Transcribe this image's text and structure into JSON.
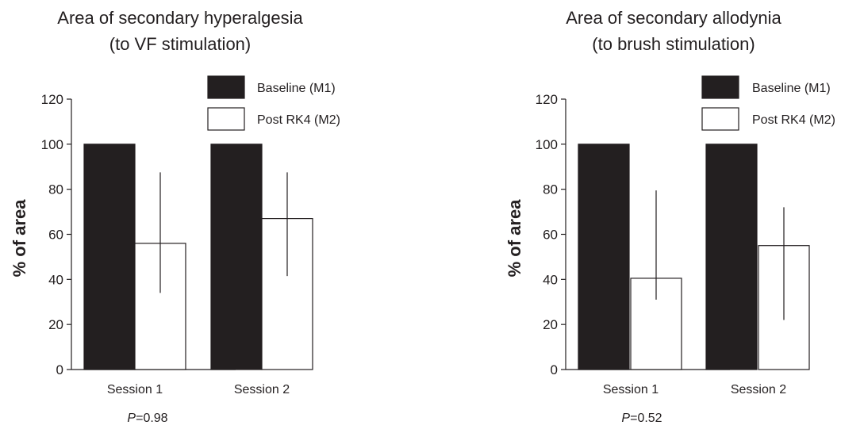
{
  "colors": {
    "baseline_fill": "#231f20",
    "post_fill": "#ffffff",
    "stroke": "#231f20",
    "background": "#ffffff"
  },
  "chart_data": [
    {
      "type": "bar",
      "title": [
        "Area of secondary hyperalgesia",
        "(to VF stimulation)"
      ],
      "xlabel": "",
      "ylabel": "% of area",
      "ylim": [
        0,
        120
      ],
      "yticks": [
        0,
        20,
        40,
        60,
        80,
        100,
        120
      ],
      "categories": [
        "Session 1",
        "Session 2"
      ],
      "series": [
        {
          "name": "Baseline (M1)",
          "values": [
            100,
            100
          ]
        },
        {
          "name": "Post RK4 (M2)",
          "values": [
            56,
            67
          ],
          "error_low": [
            34,
            41.5
          ],
          "error_high": [
            87.5,
            87.5
          ]
        }
      ],
      "legend_position": "top-right",
      "annotation": {
        "label": "P",
        "value": "=0.98"
      }
    },
    {
      "type": "bar",
      "title": [
        "Area of secondary allodynia",
        "(to brush stimulation)"
      ],
      "xlabel": "",
      "ylabel": "% of area",
      "ylim": [
        0,
        120
      ],
      "yticks": [
        0,
        20,
        40,
        60,
        80,
        100,
        120
      ],
      "categories": [
        "Session 1",
        "Session 2"
      ],
      "series": [
        {
          "name": "Baseline (M1)",
          "values": [
            100,
            100
          ]
        },
        {
          "name": "Post RK4 (M2)",
          "values": [
            40.5,
            55
          ],
          "error_low": [
            31,
            22
          ],
          "error_high": [
            79.5,
            72
          ]
        }
      ],
      "legend_position": "top-right",
      "annotation": {
        "label": "P",
        "value": "=0.52"
      }
    }
  ]
}
